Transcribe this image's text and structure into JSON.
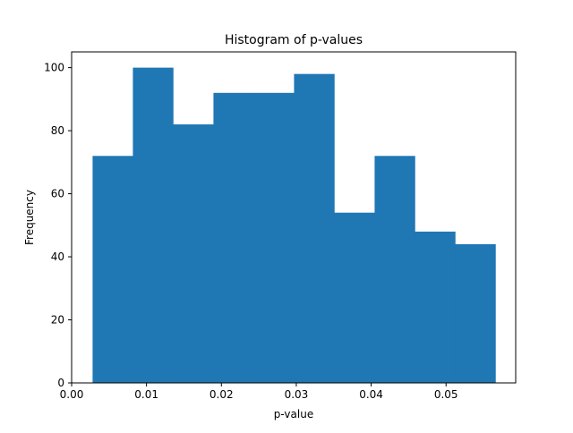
{
  "chart_data": {
    "type": "bar",
    "title": "Histogram of p-values",
    "xlabel": "p-value",
    "ylabel": "Frequency",
    "bin_edges": [
      0.0028,
      0.00818,
      0.01356,
      0.01894,
      0.02432,
      0.0297,
      0.03508,
      0.04046,
      0.04584,
      0.05122,
      0.0566
    ],
    "values": [
      72,
      100,
      82,
      92,
      92,
      98,
      54,
      72,
      48,
      44
    ],
    "xlim": [
      0.0,
      0.0593
    ],
    "ylim": [
      0,
      105
    ],
    "xticks": [
      0.0,
      0.01,
      0.02,
      0.03,
      0.04,
      0.05
    ],
    "xtick_labels": [
      "0.00",
      "0.01",
      "0.02",
      "0.03",
      "0.04",
      "0.05"
    ],
    "yticks": [
      0,
      20,
      40,
      60,
      80,
      100
    ],
    "ytick_labels": [
      "0",
      "20",
      "40",
      "60",
      "80",
      "100"
    ],
    "grid": false,
    "bar_color": "#1f77b4"
  }
}
